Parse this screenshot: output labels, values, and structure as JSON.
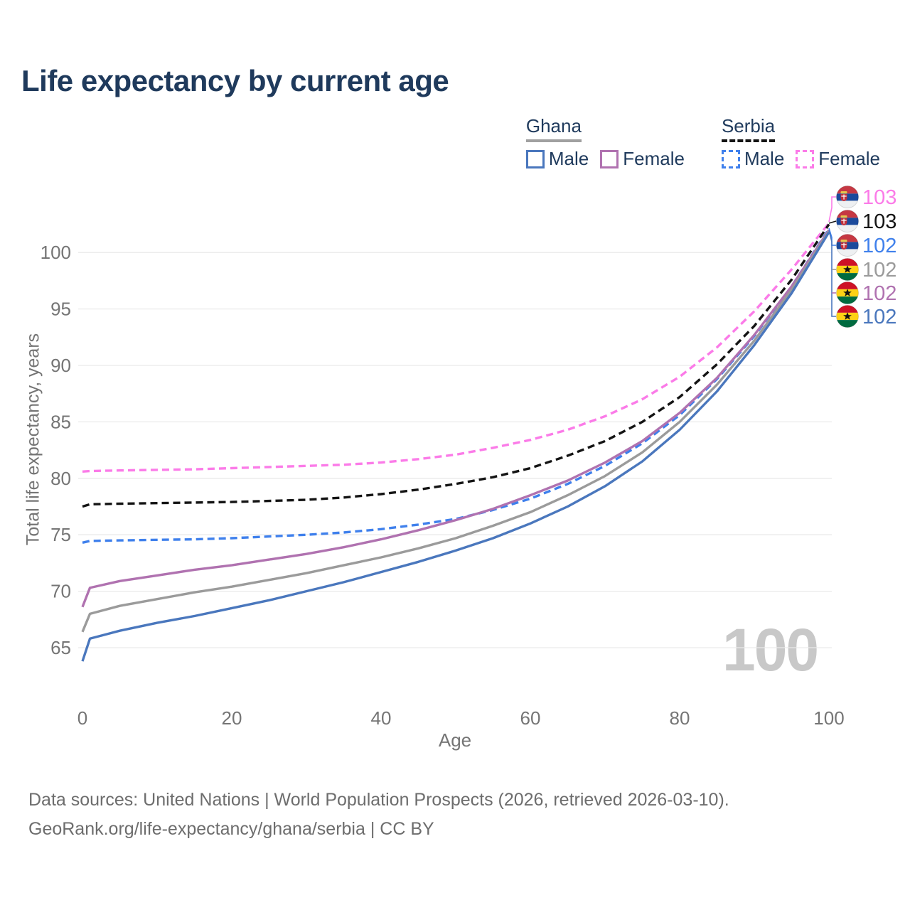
{
  "header": {
    "title": "Life expectancy by current age"
  },
  "legend": {
    "groups": [
      {
        "country": "Ghana",
        "line_style": "solid",
        "underline_color": "#a0a0a0",
        "entries": [
          {
            "label": "Male",
            "color": "#4a77bd",
            "dashed": false
          },
          {
            "label": "Female",
            "color": "#b072b0",
            "dashed": false
          }
        ]
      },
      {
        "country": "Serbia",
        "line_style": "dashed",
        "underline_color": "#141414",
        "entries": [
          {
            "label": "Male",
            "color": "#3f80ec",
            "dashed": true
          },
          {
            "label": "Female",
            "color": "#fb7be8",
            "dashed": true
          }
        ]
      }
    ]
  },
  "main": {
    "watermark_age": "100"
  },
  "chart_data": {
    "type": "line",
    "title": "Life expectancy by current age",
    "xlabel": "Age",
    "ylabel": "Total life expectancy, years",
    "xlim": [
      0,
      100
    ],
    "ylim": [
      63,
      104
    ],
    "xticks": [
      0,
      20,
      40,
      60,
      80,
      100
    ],
    "yticks": [
      65,
      70,
      75,
      80,
      85,
      90,
      95,
      100
    ],
    "grid": "horizontal",
    "legend_position": "top-right",
    "x_ages": [
      0,
      1,
      5,
      10,
      15,
      20,
      25,
      30,
      35,
      40,
      45,
      50,
      55,
      60,
      65,
      70,
      75,
      80,
      85,
      90,
      95,
      100
    ],
    "series": [
      {
        "name": "Serbia Female",
        "country": "Serbia",
        "sex": "Female",
        "style": "dashed",
        "color": "#fb7be8",
        "values": [
          80.6,
          80.65,
          80.7,
          80.75,
          80.8,
          80.9,
          81.0,
          81.1,
          81.2,
          81.4,
          81.7,
          82.1,
          82.7,
          83.4,
          84.3,
          85.5,
          87.0,
          89.0,
          91.6,
          94.8,
          98.5,
          102.6
        ]
      },
      {
        "name": "Serbia Both sexes",
        "country": "Serbia",
        "sex": "Both",
        "style": "dashed",
        "color": "#141414",
        "values": [
          77.5,
          77.7,
          77.75,
          77.8,
          77.85,
          77.9,
          78.0,
          78.1,
          78.3,
          78.6,
          79.0,
          79.5,
          80.1,
          80.9,
          82.0,
          83.3,
          85.0,
          87.2,
          90.1,
          93.5,
          97.6,
          102.5
        ]
      },
      {
        "name": "Serbia Male",
        "country": "Serbia",
        "sex": "Male",
        "style": "dashed",
        "color": "#3f80ec",
        "values": [
          74.3,
          74.45,
          74.5,
          74.55,
          74.6,
          74.7,
          74.85,
          75.0,
          75.2,
          75.5,
          75.9,
          76.4,
          77.2,
          78.2,
          79.5,
          81.1,
          83.1,
          85.6,
          88.8,
          92.6,
          97.0,
          102.1
        ]
      },
      {
        "name": "Ghana Female",
        "country": "Ghana",
        "sex": "Female",
        "style": "solid",
        "color": "#b072b0",
        "values": [
          68.6,
          70.3,
          70.9,
          71.4,
          71.9,
          72.3,
          72.8,
          73.3,
          73.9,
          74.6,
          75.4,
          76.3,
          77.3,
          78.5,
          79.8,
          81.4,
          83.3,
          85.8,
          88.9,
          92.7,
          97.0,
          102.0
        ]
      },
      {
        "name": "Ghana Both sexes",
        "country": "Ghana",
        "sex": "Both",
        "style": "solid",
        "color": "#9b9b9b",
        "values": [
          66.4,
          68.0,
          68.7,
          69.3,
          69.9,
          70.4,
          71.0,
          71.6,
          72.3,
          73.0,
          73.8,
          74.7,
          75.8,
          77.0,
          78.5,
          80.2,
          82.3,
          85.0,
          88.3,
          92.2,
          96.7,
          101.9
        ]
      },
      {
        "name": "Ghana Male",
        "country": "Ghana",
        "sex": "Male",
        "style": "solid",
        "color": "#4a77bd",
        "values": [
          63.8,
          65.8,
          66.5,
          67.2,
          67.8,
          68.5,
          69.2,
          70.0,
          70.8,
          71.7,
          72.6,
          73.6,
          74.7,
          76.0,
          77.5,
          79.3,
          81.5,
          84.3,
          87.7,
          91.8,
          96.4,
          101.8
        ]
      }
    ],
    "end_labels": [
      {
        "series": "Serbia Female",
        "country": "Serbia",
        "value": "103",
        "color": "#fb7be8"
      },
      {
        "series": "Serbia Both sexes",
        "country": "Serbia",
        "value": "103",
        "color": "#141414"
      },
      {
        "series": "Serbia Male",
        "country": "Serbia",
        "value": "102",
        "color": "#3f80ec"
      },
      {
        "series": "Ghana Both sexes",
        "country": "Ghana",
        "value": "102",
        "color": "#9b9b9b"
      },
      {
        "series": "Ghana Female",
        "country": "Ghana",
        "value": "102",
        "color": "#b072b0"
      },
      {
        "series": "Ghana Male",
        "country": "Ghana",
        "value": "102",
        "color": "#4a77bd"
      }
    ]
  },
  "footer": {
    "line1": "Data sources: United Nations | World Population Prospects (2026, retrieved 2026-03-10).",
    "line2": "GeoRank.org/life-expectancy/ghana/serbia | CC BY"
  }
}
